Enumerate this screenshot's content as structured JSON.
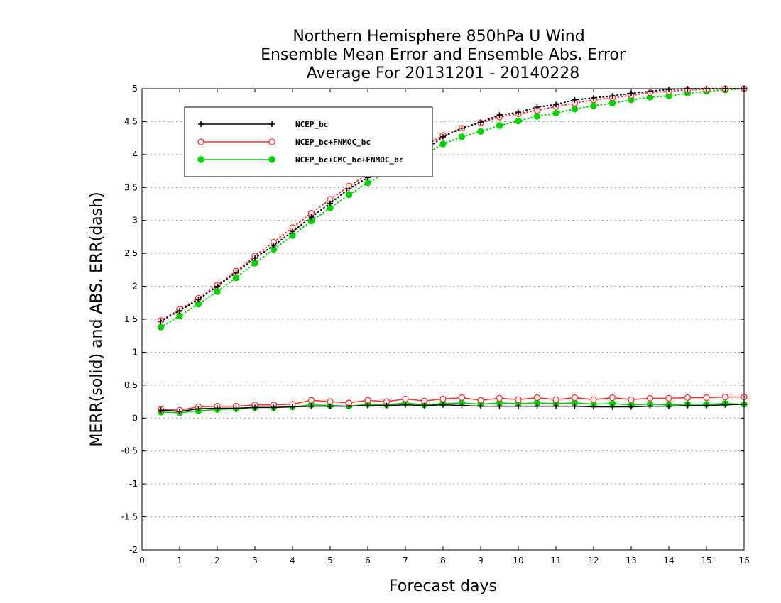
{
  "chart_data": {
    "type": "line",
    "title": [
      "Northern Hemisphere 850hPa U Wind",
      "Ensemble Mean Error and Ensemble Abs. Error",
      "Average For 20131201 - 20140228"
    ],
    "xlabel": "Forecast days",
    "ylabel": "MERR(solid) and ABS. ERR(dash)",
    "xlim": [
      0,
      16
    ],
    "ylim": [
      -2,
      5
    ],
    "xticks": [
      0,
      1,
      2,
      3,
      4,
      5,
      6,
      7,
      8,
      9,
      10,
      11,
      12,
      13,
      14,
      15,
      16
    ],
    "yticks": [
      -2,
      -1.5,
      -1,
      -0.5,
      0,
      0.5,
      1,
      1.5,
      2,
      2.5,
      3,
      3.5,
      4,
      4.5,
      5
    ],
    "grid": true,
    "legend_position": "top-left",
    "x": [
      0.5,
      1,
      1.5,
      2,
      2.5,
      3,
      3.5,
      4,
      4.5,
      5,
      5.5,
      6,
      6.5,
      7,
      7.5,
      8,
      8.5,
      9,
      9.5,
      10,
      10.5,
      11,
      11.5,
      12,
      12.5,
      13,
      13.5,
      14,
      14.5,
      15,
      15.5,
      16
    ],
    "series": [
      {
        "name": "NCEP_bc",
        "color": "#000000",
        "marker": "plus",
        "merr": [
          0.12,
          0.1,
          0.14,
          0.15,
          0.15,
          0.16,
          0.16,
          0.17,
          0.18,
          0.18,
          0.18,
          0.19,
          0.19,
          0.2,
          0.19,
          0.2,
          0.19,
          0.18,
          0.18,
          0.18,
          0.18,
          0.18,
          0.18,
          0.17,
          0.17,
          0.17,
          0.18,
          0.18,
          0.19,
          0.19,
          0.2,
          0.21
        ],
        "abs_err": [
          1.47,
          1.63,
          1.8,
          2.0,
          2.21,
          2.43,
          2.62,
          2.83,
          3.05,
          3.26,
          3.48,
          3.65,
          3.8,
          3.92,
          4.06,
          4.27,
          4.4,
          4.49,
          4.6,
          4.64,
          4.72,
          4.76,
          4.83,
          4.86,
          4.89,
          4.93,
          4.96,
          4.99,
          5.0,
          5.0,
          5.0,
          5.0
        ]
      },
      {
        "name": "NCEP_bc+FNMOC_bc",
        "color": "#ff3030",
        "marker": "open-circle",
        "merr": [
          0.13,
          0.12,
          0.17,
          0.18,
          0.18,
          0.2,
          0.2,
          0.21,
          0.27,
          0.25,
          0.23,
          0.27,
          0.25,
          0.29,
          0.26,
          0.29,
          0.31,
          0.27,
          0.3,
          0.28,
          0.31,
          0.28,
          0.31,
          0.28,
          0.31,
          0.28,
          0.3,
          0.3,
          0.31,
          0.31,
          0.32,
          0.32
        ],
        "abs_err": [
          1.48,
          1.65,
          1.82,
          2.02,
          2.23,
          2.46,
          2.67,
          2.89,
          3.11,
          3.32,
          3.52,
          3.7,
          3.88,
          4.0,
          4.13,
          4.29,
          4.4,
          4.48,
          4.57,
          4.62,
          4.67,
          4.73,
          4.78,
          4.83,
          4.86,
          4.9,
          4.94,
          4.96,
          4.98,
          4.99,
          5.0,
          5.0
        ]
      },
      {
        "name": "NCEP_bc+CMC_bc+FNMOC_bc",
        "color": "#00d000",
        "marker": "filled-circle",
        "merr": [
          0.09,
          0.08,
          0.11,
          0.13,
          0.14,
          0.16,
          0.16,
          0.17,
          0.2,
          0.19,
          0.18,
          0.21,
          0.2,
          0.23,
          0.2,
          0.22,
          0.23,
          0.21,
          0.23,
          0.22,
          0.23,
          0.22,
          0.23,
          0.21,
          0.22,
          0.2,
          0.21,
          0.2,
          0.21,
          0.21,
          0.22,
          0.21
        ],
        "abs_err": [
          1.38,
          1.55,
          1.73,
          1.92,
          2.13,
          2.35,
          2.56,
          2.77,
          2.99,
          3.19,
          3.39,
          3.57,
          3.73,
          3.86,
          3.99,
          4.16,
          4.27,
          4.35,
          4.44,
          4.51,
          4.58,
          4.63,
          4.69,
          4.74,
          4.78,
          4.83,
          4.87,
          4.89,
          4.93,
          4.96,
          4.98,
          5.0
        ]
      }
    ]
  }
}
